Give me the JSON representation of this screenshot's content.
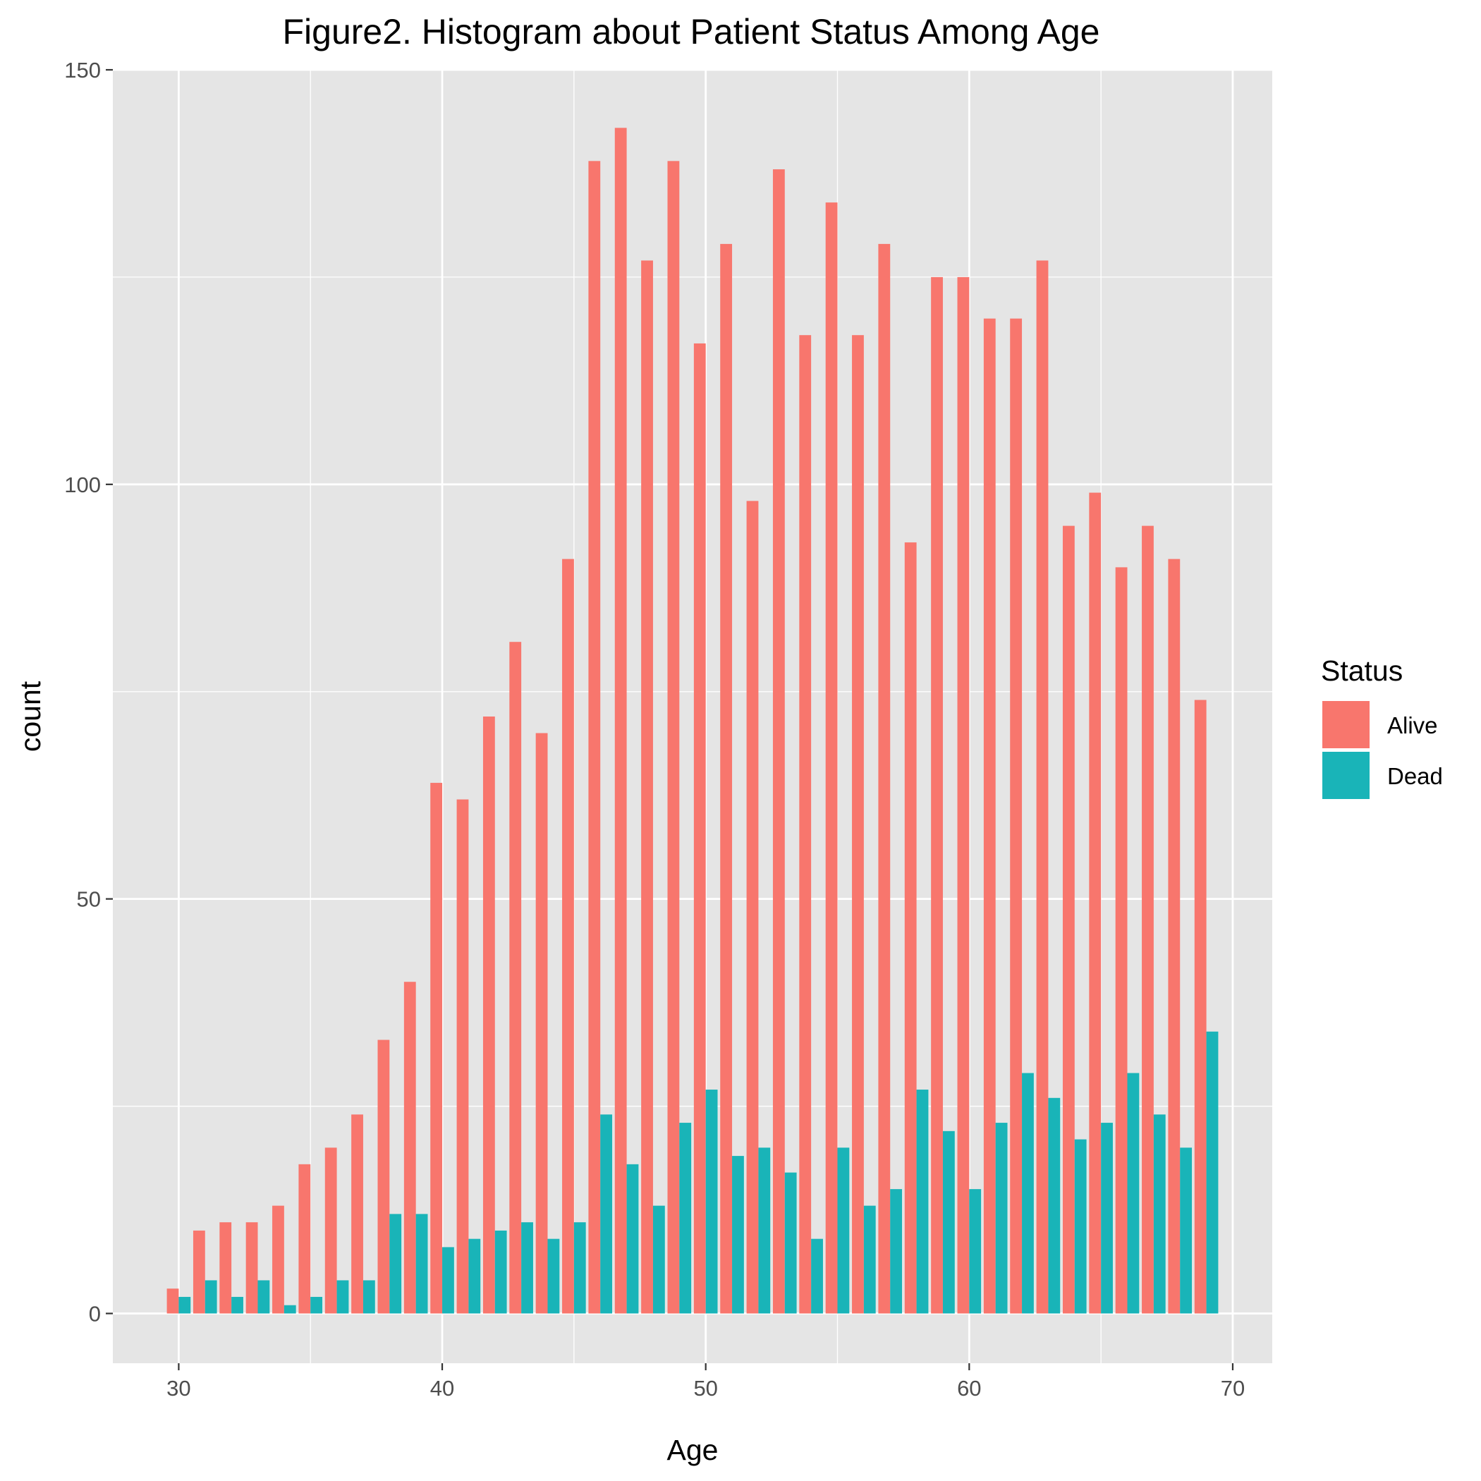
{
  "chart_data": {
    "type": "bar",
    "title": "Figure2. Histogram about Patient Status Among Age",
    "xlabel": "Age",
    "ylabel": "count",
    "xlim": [
      27.5,
      71.5
    ],
    "ylim": [
      -6,
      150
    ],
    "x_ticks": [
      30,
      40,
      50,
      60,
      70
    ],
    "y_ticks": [
      0,
      50,
      100,
      150
    ],
    "y_minor_ticks": [
      25,
      75,
      125
    ],
    "x_minor_ticks": [
      35,
      45,
      55,
      65
    ],
    "grid": true,
    "legend": {
      "title": "Status",
      "position": "right"
    },
    "categories": [
      30,
      31,
      32,
      33,
      34,
      35,
      36,
      37,
      38,
      39,
      40,
      41,
      42,
      43,
      44,
      45,
      46,
      47,
      48,
      49,
      50,
      51,
      52,
      53,
      54,
      55,
      56,
      57,
      58,
      59,
      60,
      61,
      62,
      63,
      64,
      65,
      66,
      67,
      68,
      69
    ],
    "series": [
      {
        "name": "Alive",
        "color": "#f8766d",
        "values": [
          3,
          10,
          11,
          11,
          13,
          18,
          20,
          24,
          33,
          40,
          64,
          62,
          72,
          81,
          70,
          91,
          139,
          143,
          127,
          139,
          117,
          129,
          98,
          138,
          118,
          134,
          118,
          129,
          93,
          125,
          125,
          120,
          120,
          127,
          95,
          99,
          90,
          95,
          91,
          74
        ]
      },
      {
        "name": "Dead",
        "color": "#19b4b8",
        "values": [
          2,
          4,
          2,
          4,
          1,
          2,
          4,
          4,
          12,
          12,
          8,
          9,
          10,
          11,
          9,
          11,
          24,
          18,
          13,
          23,
          27,
          19,
          20,
          17,
          9,
          20,
          13,
          15,
          27,
          22,
          15,
          23,
          29,
          26,
          21,
          23,
          29,
          24,
          20,
          34
        ]
      }
    ]
  },
  "colors": {
    "panel_background": "#e5e5e5",
    "grid_line": "#ffffff",
    "tick_text": "#4d4d4d"
  }
}
